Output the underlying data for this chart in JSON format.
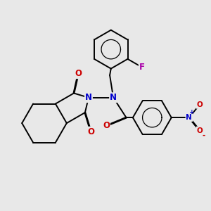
{
  "background_color": "#e8e8e8",
  "figsize": [
    3.0,
    3.0
  ],
  "dpi": 100,
  "atom_colors": {
    "C": "#000000",
    "N": "#0000cc",
    "O": "#cc0000",
    "F": "#aa00aa"
  },
  "bond_color": "#000000",
  "bond_width": 1.4,
  "font_size_atom": 8.5,
  "font_size_small": 7.5,
  "font_size_charge": 6.5
}
